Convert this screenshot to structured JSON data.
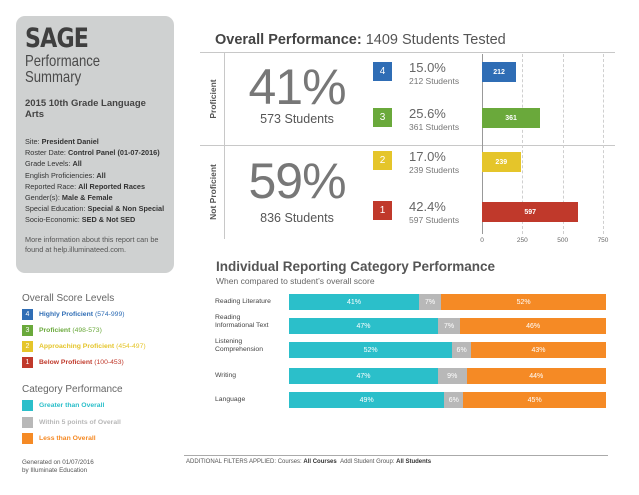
{
  "header": {
    "brand": "SAGE",
    "subtitle_line1": "Performance",
    "subtitle_line2": "Summary",
    "grade": "2015 10th Grade Language Arts"
  },
  "meta": [
    {
      "label": "Site:",
      "value": "President Daniel"
    },
    {
      "label": "Roster Date:",
      "value": "Control Panel (01-07-2016)"
    },
    {
      "label": "Grade Levels:",
      "value": "All"
    },
    {
      "label": "English Proficiencies:",
      "value": "All"
    },
    {
      "label": "Reported Race:",
      "value": "All Reported Races"
    },
    {
      "label": "Gender(s):",
      "value": "Male & Female"
    },
    {
      "label": "Special Education:",
      "value": "Special & Non Special"
    },
    {
      "label": "Socio-Economic:",
      "value": "SED & Not SED"
    }
  ],
  "more_info": "More information about this report can be found at help.illuminateed.com.",
  "score_levels": {
    "title": "Overall Score Levels",
    "items": [
      {
        "num": "4",
        "name": "Highly Proficient",
        "range": "(574-999)",
        "color": "#2f6db5"
      },
      {
        "num": "3",
        "name": "Proficient",
        "range": "(498-573)",
        "color": "#6aa93b"
      },
      {
        "num": "2",
        "name": "Approaching Proficient",
        "range": "(454-497)",
        "color": "#e5c52a"
      },
      {
        "num": "1",
        "name": "Below Proficient",
        "range": "(100-453)",
        "color": "#c0392b"
      }
    ]
  },
  "category_performance": {
    "title": "Category Performance",
    "items": [
      {
        "name": "Greater than Overall",
        "color": "#2bbfca"
      },
      {
        "name": "Within 5 points of Overall",
        "color": "#b8b8b8"
      },
      {
        "name": "Less than Overall",
        "color": "#f58a25"
      }
    ]
  },
  "generated": {
    "line1": "Generated on 01/07/2016",
    "line2": "by Illuminate Education"
  },
  "overall": {
    "title_bold": "Overall Performance:",
    "title_rest": "1409 Students Tested",
    "groups": [
      {
        "label": "Proficient",
        "pct": "41%",
        "students": "573 Students"
      },
      {
        "label": "Not Proficient",
        "pct": "59%",
        "students": "836 Students"
      }
    ],
    "levels": [
      {
        "num": "4",
        "pct": "15.0%",
        "students": "212 Students",
        "count": 212,
        "color": "#2f6db5"
      },
      {
        "num": "3",
        "pct": "25.6%",
        "students": "361 Students",
        "count": 361,
        "color": "#6aa93b"
      },
      {
        "num": "2",
        "pct": "17.0%",
        "students": "239 Students",
        "count": 239,
        "color": "#e5c52a"
      },
      {
        "num": "1",
        "pct": "42.4%",
        "students": "597 Students",
        "count": 597,
        "color": "#c0392b"
      }
    ],
    "axis_ticks": [
      "0",
      "250",
      "500",
      "750"
    ],
    "axis_max": 750
  },
  "individual": {
    "title": "Individual Reporting Category Performance",
    "subtitle": "When compared to student’s overall score",
    "categories": [
      {
        "line1": "Reading Literature",
        "line2": "",
        "greater": 41,
        "within": 7,
        "less": 52
      },
      {
        "line1": "Reading",
        "line2": "Informational Text",
        "greater": 47,
        "within": 7,
        "less": 46
      },
      {
        "line1": "Listening",
        "line2": "Comprehension",
        "greater": 52,
        "within": 6,
        "less": 43
      },
      {
        "line1": "Writing",
        "line2": "",
        "greater": 47,
        "within": 9,
        "less": 44
      },
      {
        "line1": "Language",
        "line2": "",
        "greater": 49,
        "within": 6,
        "less": 45
      }
    ]
  },
  "filters": {
    "prefix": "ADDITIONAL FILTERS APPLIED:",
    "courses_label": "Courses:",
    "courses_value": "All Courses",
    "group_label": "Addl Student Group:",
    "group_value": "All Students"
  }
}
